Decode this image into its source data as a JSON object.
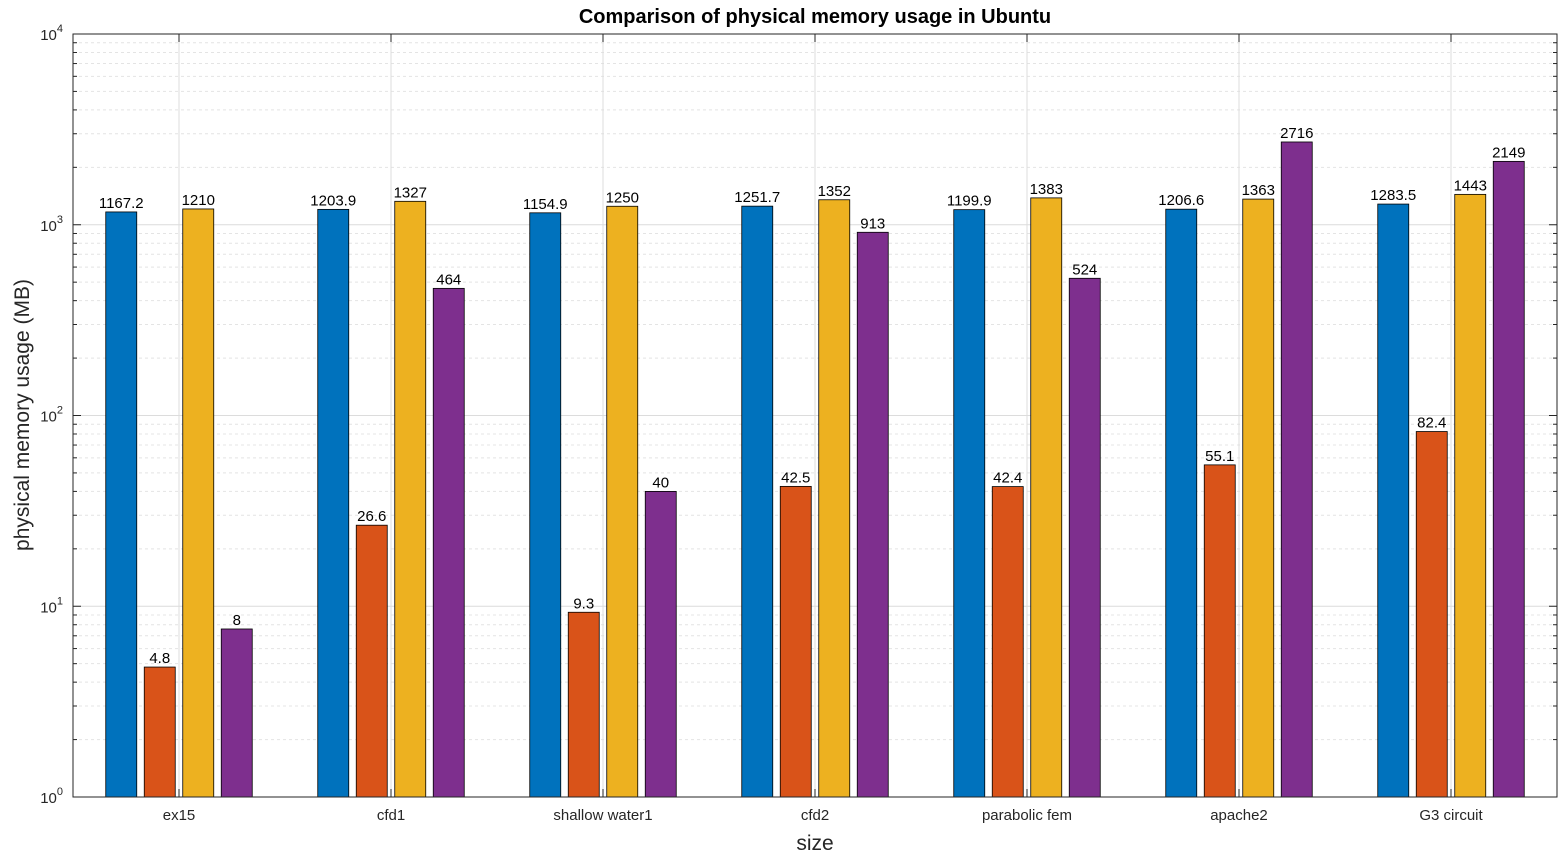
{
  "chart_data": {
    "type": "bar",
    "title": "Comparison of physical memory usage in Ubuntu",
    "xlabel": "size",
    "ylabel": "physical memory usage (MB)",
    "yscale": "log",
    "ylim": [
      1,
      10000
    ],
    "yticks": [
      {
        "value": 1,
        "label": "10",
        "exp": "0"
      },
      {
        "value": 10,
        "label": "10",
        "exp": "1"
      },
      {
        "value": 100,
        "label": "10",
        "exp": "2"
      },
      {
        "value": 1000,
        "label": "10",
        "exp": "3"
      },
      {
        "value": 10000,
        "label": "10",
        "exp": "4"
      }
    ],
    "grid": true,
    "categories": [
      "ex15",
      "cfd1",
      "shallow water1",
      "cfd2",
      "parabolic fem",
      "apache2",
      "G3 circuit"
    ],
    "series": [
      {
        "color": "#0072BD",
        "values": [
          1167.2,
          1203.9,
          1154.9,
          1251.7,
          1199.9,
          1206.6,
          1283.5
        ],
        "labels": [
          "1167.2",
          "1203.9",
          "1154.9",
          "1251.7",
          "1199.9",
          "1206.6",
          "1283.5"
        ]
      },
      {
        "color": "#D95319",
        "values": [
          4.8,
          26.6,
          9.3,
          42.5,
          42.4,
          55.1,
          82.4
        ],
        "labels": [
          "4.8",
          "26.6",
          "9.3",
          "42.5",
          "42.4",
          "55.1",
          "82.4"
        ]
      },
      {
        "color": "#EDB120",
        "values": [
          1210,
          1327,
          1250,
          1352,
          1383,
          1363,
          1443
        ],
        "labels": [
          "1210",
          "1327",
          "1250",
          "1352",
          "1383",
          "1363",
          "1443"
        ]
      },
      {
        "color": "#7E2F8E",
        "values": [
          7.6,
          464,
          40,
          913,
          524,
          2716,
          2149
        ],
        "labels": [
          "8",
          "464",
          "40",
          "913",
          "524",
          "2716",
          "2149"
        ]
      }
    ]
  }
}
